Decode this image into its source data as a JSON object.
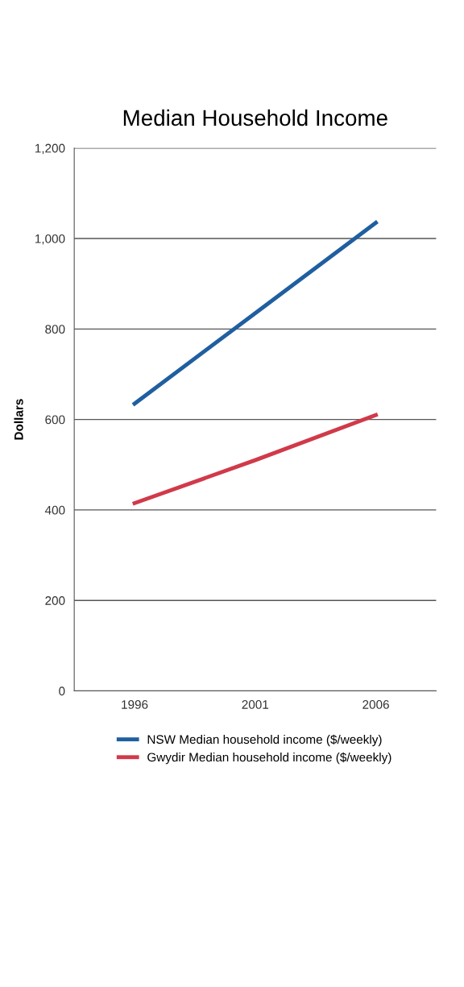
{
  "chart_data": {
    "type": "line",
    "title": "Median Household Income",
    "ylabel": "Dollars",
    "categories": [
      "1996",
      "2001",
      "2006"
    ],
    "series": [
      {
        "name": "NSW Median household income ($/weekly)",
        "color": "#1f5fa0",
        "values": [
          635,
          835,
          1035
        ]
      },
      {
        "name": "Gwydir Median household income ($/weekly)",
        "color": "#d03a4a",
        "values": [
          415,
          510,
          610
        ]
      }
    ],
    "ylim": [
      0,
      1200
    ],
    "yticks": [
      0,
      200,
      400,
      600,
      800,
      {
        "value": 1000,
        "label": "1,000"
      },
      {
        "value": 1200,
        "label": "1,200"
      }
    ],
    "grid": "y",
    "legend": "bottom",
    "marker": "none",
    "line_style": "solid"
  }
}
